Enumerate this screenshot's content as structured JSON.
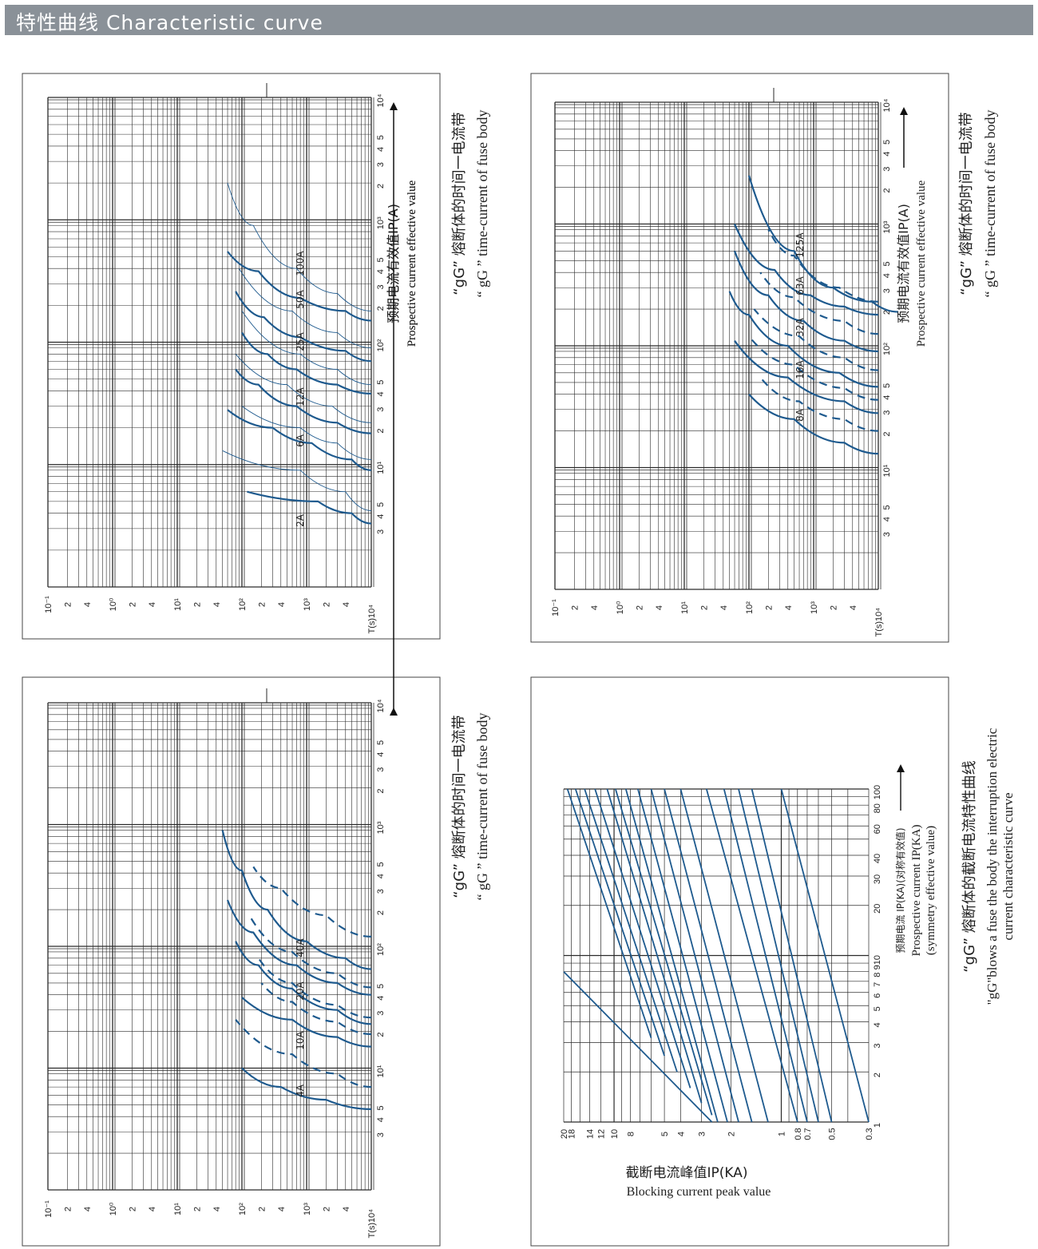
{
  "page": {
    "header_title": "特性曲线 Characteristic curve",
    "line_color": "#1e5a8e",
    "header_color": "#8a9198"
  },
  "chart_data": [
    {
      "id": "gg-low",
      "type": "line",
      "orientation": "rotated-90-ccw",
      "xscale": "log",
      "yscale": "log",
      "xlim": [
        1,
        10000
      ],
      "ylim": [
        0.1,
        10000
      ],
      "x_ticks": [
        "3",
        "4",
        "5",
        "10¹",
        "2",
        "3",
        "4",
        "5",
        "10²",
        "2",
        "3",
        "4",
        "5",
        "10³",
        "2",
        "3",
        "4",
        "5",
        "10⁴"
      ],
      "y_ticks": [
        "10⁻¹",
        "2",
        "4",
        "10⁰",
        "2",
        "4",
        "10¹",
        "2",
        "4",
        "10²",
        "2",
        "4",
        "10³",
        "2",
        "4",
        "T(s)10⁴"
      ],
      "xlabel_cn": "预期电流有效值IP(A)",
      "xlabel_en": "Prospective current effective value",
      "caption_cn": "“gG” 熔断体的时间一电流带",
      "caption_en": "“ gG ” time-current of fuse body",
      "curve_labels": [
        "2A",
        "6A",
        "12A",
        "25A",
        "50A",
        "100A"
      ],
      "series": [
        {
          "name": "2A",
          "style": "solid",
          "x": [
            3.3,
            4,
            5,
            6
          ],
          "y": [
            10000,
            5000,
            1500,
            120
          ]
        },
        {
          "name": "2A",
          "style": "thin",
          "x": [
            4.2,
            6,
            9,
            13
          ],
          "y": [
            10000,
            4000,
            800,
            50
          ]
        },
        {
          "name": "6A",
          "style": "solid",
          "x": [
            9,
            11,
            15,
            20,
            28
          ],
          "y": [
            10000,
            5000,
            1200,
            300,
            60
          ]
        },
        {
          "name": "6A",
          "style": "thin",
          "x": [
            11,
            15,
            20,
            30
          ],
          "y": [
            10000,
            3000,
            800,
            100
          ]
        },
        {
          "name": "12A",
          "style": "solid",
          "x": [
            18,
            22,
            30,
            45,
            60
          ],
          "y": [
            10000,
            3000,
            700,
            180,
            80
          ]
        },
        {
          "name": "12A",
          "style": "thin",
          "x": [
            22,
            30,
            45,
            80
          ],
          "y": [
            10000,
            2500,
            500,
            80
          ]
        },
        {
          "name": "25A",
          "style": "solid",
          "x": [
            38,
            45,
            60,
            80,
            120
          ],
          "y": [
            10000,
            3000,
            700,
            250,
            100
          ]
        },
        {
          "name": "25A",
          "style": "thin",
          "x": [
            45,
            60,
            80,
            180
          ],
          "y": [
            10000,
            3000,
            800,
            100
          ]
        },
        {
          "name": "50A",
          "style": "solid",
          "x": [
            70,
            85,
            110,
            160,
            260
          ],
          "y": [
            10000,
            4000,
            800,
            220,
            80
          ]
        },
        {
          "name": "50A",
          "style": "thin",
          "x": [
            90,
            120,
            180,
            400
          ],
          "y": [
            10000,
            3000,
            600,
            90
          ]
        },
        {
          "name": "100A",
          "style": "solid",
          "x": [
            150,
            180,
            230,
            380,
            550
          ],
          "y": [
            10000,
            4000,
            800,
            180,
            60
          ]
        },
        {
          "name": "100A",
          "style": "thin",
          "x": [
            180,
            250,
            400,
            900,
            2000
          ],
          "y": [
            10000,
            3000,
            700,
            150,
            60
          ]
        }
      ]
    },
    {
      "id": "gg-mid",
      "type": "line",
      "orientation": "rotated-90-ccw",
      "xscale": "log",
      "yscale": "log",
      "xlim": [
        1,
        10000
      ],
      "ylim": [
        0.1,
        10000
      ],
      "x_ticks": [
        "3",
        "4",
        "5",
        "10¹",
        "2",
        "3",
        "4",
        "5",
        "10²",
        "2",
        "3",
        "4",
        "5",
        "10³",
        "2",
        "3",
        "4",
        "5",
        "10⁴"
      ],
      "y_ticks": [
        "10⁻¹",
        "2",
        "4",
        "10⁰",
        "2",
        "4",
        "10¹",
        "2",
        "4",
        "10²",
        "2",
        "4",
        "10³",
        "2",
        "4",
        "T(s)10⁴"
      ],
      "xlabel_cn": "预期电流有效值IP(A)",
      "xlabel_en": "Prospective current effective value",
      "caption_cn": "“gG” 熔断体的时间一电流带",
      "caption_en": "“ gG ” time-current of fuse body",
      "curve_labels": [
        "4A",
        "10A",
        "20A",
        "40A"
      ],
      "series": [
        {
          "name": "4A",
          "style": "solid",
          "x": [
            4.6,
            5.5,
            7,
            10
          ],
          "y": [
            10000,
            2000,
            400,
            100
          ]
        },
        {
          "name": "4A",
          "style": "dashed",
          "x": [
            7,
            9,
            13,
            25
          ],
          "y": [
            10000,
            3000,
            600,
            80
          ]
        },
        {
          "name": "10A",
          "style": "solid",
          "x": [
            15,
            18,
            25,
            38
          ],
          "y": [
            10000,
            3000,
            600,
            100
          ]
        },
        {
          "name": "10A",
          "style": "dashed",
          "x": [
            19,
            24,
            35,
            50
          ],
          "y": [
            10000,
            3000,
            600,
            200
          ]
        },
        {
          "name": "20A",
          "style": "solid",
          "x": [
            23,
            30,
            45,
            70,
            110
          ],
          "y": [
            10000,
            3000,
            600,
            180,
            80
          ]
        },
        {
          "name": "20A",
          "style": "dashed",
          "x": [
            26,
            33,
            50,
            80
          ],
          "y": [
            10000,
            3000,
            600,
            180
          ]
        },
        {
          "name": "40A",
          "style": "solid",
          "x": [
            40,
            50,
            70,
            130,
            240
          ],
          "y": [
            10000,
            3000,
            700,
            150,
            60
          ]
        },
        {
          "name": "40A",
          "style": "dashed",
          "x": [
            46,
            60,
            90,
            180
          ],
          "y": [
            10000,
            3000,
            600,
            130
          ]
        },
        {
          "name": "40A",
          "style": "solid",
          "x": [
            65,
            80,
            110,
            200,
            420,
            900
          ],
          "y": [
            10000,
            4000,
            1000,
            250,
            100,
            50
          ]
        },
        {
          "name": "40A",
          "style": "dashed",
          "x": [
            120,
            180,
            300,
            450
          ],
          "y": [
            10000,
            2000,
            400,
            150
          ]
        }
      ]
    },
    {
      "id": "gg-high",
      "type": "line",
      "orientation": "rotated-90-ccw",
      "xscale": "log",
      "yscale": "log",
      "xlim": [
        1,
        10000
      ],
      "ylim": [
        0.1,
        10000
      ],
      "x_ticks": [
        "3",
        "4",
        "5",
        "10¹",
        "2",
        "3",
        "4",
        "5",
        "10²",
        "2",
        "3",
        "4",
        "5",
        "10³",
        "2",
        "3",
        "4",
        "5",
        "10⁴"
      ],
      "y_ticks": [
        "10⁻¹",
        "2",
        "4",
        "10⁰",
        "2",
        "4",
        "10¹",
        "2",
        "4",
        "10²",
        "2",
        "4",
        "10³",
        "2",
        "4",
        "T(s)10⁴"
      ],
      "xlabel_cn": "预期电流有效值IP(A)",
      "xlabel_en": "Prospective current effective value",
      "caption_cn": "“gG” 熔断体的时间一电流带",
      "caption_en": "“ gG ” time-current of fuse body",
      "curve_labels": [
        "8A",
        "16A",
        "32A",
        "63A",
        "125A"
      ],
      "series": [
        {
          "name": "8A",
          "style": "solid",
          "x": [
            13,
            16,
            25,
            40
          ],
          "y": [
            10000,
            3000,
            500,
            100
          ]
        },
        {
          "name": "8A",
          "style": "dashed",
          "x": [
            20,
            25,
            35,
            55
          ],
          "y": [
            10000,
            3000,
            600,
            150
          ]
        },
        {
          "name": "16A",
          "style": "solid",
          "x": [
            28,
            35,
            55,
            110
          ],
          "y": [
            10000,
            3000,
            400,
            60
          ]
        },
        {
          "name": "16A",
          "style": "dashed",
          "x": [
            36,
            45,
            70,
            120
          ],
          "y": [
            10000,
            3000,
            500,
            100
          ]
        },
        {
          "name": "32A",
          "style": "solid",
          "x": [
            46,
            60,
            100,
            180,
            280
          ],
          "y": [
            10000,
            2500,
            400,
            100,
            50
          ]
        },
        {
          "name": "32A",
          "style": "dashed",
          "x": [
            63,
            80,
            120,
            200
          ],
          "y": [
            10000,
            3000,
            600,
            120
          ]
        },
        {
          "name": "63A",
          "style": "solid",
          "x": [
            90,
            110,
            160,
            260,
            600
          ],
          "y": [
            10000,
            3000,
            700,
            200,
            60
          ]
        },
        {
          "name": "63A",
          "style": "dashed",
          "x": [
            125,
            160,
            250,
            400
          ],
          "y": [
            10000,
            3000,
            500,
            150
          ]
        },
        {
          "name": "125A",
          "style": "solid",
          "x": [
            180,
            210,
            260,
            420,
            1000
          ],
          "y": [
            10000,
            3000,
            900,
            250,
            60
          ]
        },
        {
          "name": "125A",
          "style": "dashed",
          "x": [
            230,
            300,
            550,
            900
          ],
          "y": [
            10000,
            2500,
            500,
            200
          ]
        },
        {
          "name": "125A",
          "style": "solid",
          "x": [
            190,
            230,
            300,
            600,
            2500
          ],
          "y": [
            20000,
            8000,
            2000,
            500,
            100
          ]
        }
      ]
    },
    {
      "id": "cutoff",
      "type": "line",
      "orientation": "rotated-90-ccw",
      "xscale": "log",
      "yscale": "log",
      "xlim": [
        1,
        100
      ],
      "ylim": [
        0.3,
        20
      ],
      "x_ticks": [
        "1",
        "2",
        "3",
        "4",
        "5",
        "6",
        "7",
        "8",
        "910",
        "20",
        "30",
        "40",
        "60",
        "80",
        "100"
      ],
      "y_ticks": [
        "0.3",
        "0.5",
        "0.7",
        "0.8",
        "1",
        "2",
        "3",
        "4",
        "5",
        "8",
        "10",
        "12",
        "14",
        "18",
        "20"
      ],
      "xlabel_cn": "预期电流 IP(KA)(对称有效值)",
      "xlabel_en": "Prospective current IP(KA)",
      "xlabel_en2": "(symmetry effective value)",
      "ylabel_cn": "截断电流峰值IP(KA)",
      "ylabel_en": "Blocking current peak value",
      "caption_cn": "“gG” 熔断体的截断电流特性曲线",
      "caption_en": "\"gG\"blows a fuse the body the interruption electric",
      "caption_en2": "current characteristic curve",
      "series": [
        {
          "name": "envelope",
          "x": [
            1,
            8
          ],
          "y": [
            2.6,
            20
          ]
        },
        {
          "name": "c1",
          "x": [
            1,
            100
          ],
          "y": [
            0.3,
            1
          ]
        },
        {
          "name": "c2",
          "x": [
            1,
            100
          ],
          "y": [
            0.5,
            1.5
          ]
        },
        {
          "name": "c3",
          "x": [
            1,
            100
          ],
          "y": [
            0.6,
            1.8
          ]
        },
        {
          "name": "c4",
          "x": [
            1,
            100
          ],
          "y": [
            0.7,
            2.2
          ]
        },
        {
          "name": "c5",
          "x": [
            1,
            100
          ],
          "y": [
            0.8,
            2.8
          ]
        },
        {
          "name": "c6",
          "x": [
            1,
            100
          ],
          "y": [
            1.2,
            4
          ]
        },
        {
          "name": "c7",
          "x": [
            1,
            100
          ],
          "y": [
            1.5,
            5
          ]
        },
        {
          "name": "c8",
          "x": [
            1,
            100
          ],
          "y": [
            1.8,
            6
          ]
        },
        {
          "name": "c9",
          "x": [
            1,
            100
          ],
          "y": [
            2.1,
            7.2
          ]
        },
        {
          "name": "c10",
          "x": [
            1,
            100
          ],
          "y": [
            2.4,
            8.5
          ]
        },
        {
          "name": "c11",
          "x": [
            1.1,
            100
          ],
          "y": [
            2.6,
            9.8
          ]
        },
        {
          "name": "c12",
          "x": [
            1.3,
            100
          ],
          "y": [
            3.0,
            11
          ]
        },
        {
          "name": "c13",
          "x": [
            1.6,
            100
          ],
          "y": [
            3.5,
            13
          ]
        },
        {
          "name": "c14",
          "x": [
            2,
            100
          ],
          "y": [
            4.2,
            15
          ]
        },
        {
          "name": "c15",
          "x": [
            2.5,
            100
          ],
          "y": [
            5.0,
            17
          ]
        },
        {
          "name": "c16",
          "x": [
            3.2,
            100
          ],
          "y": [
            6.0,
            19
          ]
        }
      ]
    }
  ]
}
